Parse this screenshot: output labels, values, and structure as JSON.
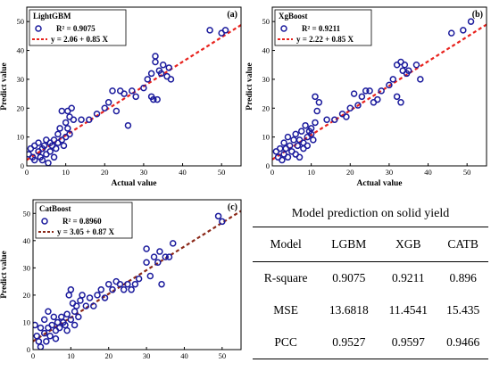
{
  "chart_data": [
    {
      "type": "scatter",
      "panel_label": "(a)",
      "legend_title": "LightGBM",
      "r2_text": "R² = 0.9075",
      "fit_text": "y = 2.06 + 0.85 X",
      "fit": {
        "intercept": 2.06,
        "slope": 0.85
      },
      "xlabel": "Actual value",
      "ylabel": "Predict value",
      "xlim": [
        0,
        55
      ],
      "ylim": [
        0,
        55
      ],
      "xticks": [
        0,
        10,
        20,
        30,
        40,
        50
      ],
      "yticks": [
        0,
        10,
        20,
        30,
        40,
        50
      ],
      "legend_position": "top-left",
      "marker_color": "#1a1a9c",
      "fit_color": "#e8221d",
      "points": [
        [
          0.5,
          4
        ],
        [
          1,
          6
        ],
        [
          1.5,
          3
        ],
        [
          2,
          7
        ],
        [
          2,
          2
        ],
        [
          3,
          5
        ],
        [
          3,
          8
        ],
        [
          3.5,
          3
        ],
        [
          4,
          6
        ],
        [
          4,
          2
        ],
        [
          4.5,
          7
        ],
        [
          5,
          4
        ],
        [
          5,
          9
        ],
        [
          5.5,
          1
        ],
        [
          6,
          5
        ],
        [
          6,
          8
        ],
        [
          6.5,
          7
        ],
        [
          7,
          9
        ],
        [
          7,
          3
        ],
        [
          7.5,
          6
        ],
        [
          8,
          11
        ],
        [
          8,
          8
        ],
        [
          8.5,
          13
        ],
        [
          9,
          9
        ],
        [
          9,
          19
        ],
        [
          9.5,
          7
        ],
        [
          10,
          10
        ],
        [
          10,
          15
        ],
        [
          10.5,
          13
        ],
        [
          10.5,
          19
        ],
        [
          11,
          11
        ],
        [
          11,
          17
        ],
        [
          11.5,
          20
        ],
        [
          12,
          16
        ],
        [
          14,
          16
        ],
        [
          16,
          16
        ],
        [
          18,
          18
        ],
        [
          20,
          20
        ],
        [
          21,
          22
        ],
        [
          22,
          26
        ],
        [
          23,
          19
        ],
        [
          24,
          26
        ],
        [
          25,
          25
        ],
        [
          26,
          14
        ],
        [
          27,
          26
        ],
        [
          28,
          24
        ],
        [
          30,
          27
        ],
        [
          31,
          30
        ],
        [
          32,
          32
        ],
        [
          32,
          24
        ],
        [
          32.5,
          23
        ],
        [
          33,
          36
        ],
        [
          33,
          38
        ],
        [
          33.5,
          23
        ],
        [
          34,
          33
        ],
        [
          34.5,
          32
        ],
        [
          35,
          35
        ],
        [
          36,
          31
        ],
        [
          36.5,
          34
        ],
        [
          37,
          30
        ],
        [
          47,
          47
        ],
        [
          50,
          46
        ],
        [
          51,
          47
        ]
      ]
    },
    {
      "type": "scatter",
      "panel_label": "(b)",
      "legend_title": "XgBoost",
      "r2_text": "R² = 0.9211",
      "fit_text": "y = 2.22 + 0.85 X",
      "fit": {
        "intercept": 2.22,
        "slope": 0.85
      },
      "xlabel": "Actual value",
      "ylabel": "Predict value",
      "xlim": [
        0,
        55
      ],
      "ylim": [
        0,
        55
      ],
      "xticks": [
        0,
        10,
        20,
        30,
        40,
        50
      ],
      "yticks": [
        0,
        10,
        20,
        30,
        40,
        50
      ],
      "legend_position": "top-left",
      "marker_color": "#1a1a9c",
      "fit_color": "#e8221d",
      "points": [
        [
          1,
          5
        ],
        [
          1.5,
          3
        ],
        [
          2,
          6
        ],
        [
          2.5,
          2
        ],
        [
          3,
          8
        ],
        [
          3,
          4
        ],
        [
          3.5,
          6
        ],
        [
          4,
          3
        ],
        [
          4,
          10
        ],
        [
          4.5,
          7
        ],
        [
          5,
          5
        ],
        [
          5.5,
          9
        ],
        [
          6,
          4
        ],
        [
          6,
          11
        ],
        [
          6.5,
          7
        ],
        [
          7,
          9
        ],
        [
          7,
          3
        ],
        [
          7.5,
          12
        ],
        [
          8,
          8
        ],
        [
          8,
          6
        ],
        [
          8.5,
          14
        ],
        [
          9,
          10
        ],
        [
          9,
          7
        ],
        [
          9.5,
          12
        ],
        [
          10,
          11
        ],
        [
          10,
          13
        ],
        [
          10.5,
          9
        ],
        [
          11,
          15
        ],
        [
          11,
          24
        ],
        [
          11.5,
          19
        ],
        [
          12,
          22
        ],
        [
          14,
          16
        ],
        [
          16,
          16
        ],
        [
          18,
          18
        ],
        [
          19,
          17
        ],
        [
          20,
          20
        ],
        [
          21,
          25
        ],
        [
          22,
          21
        ],
        [
          23,
          24
        ],
        [
          24,
          26
        ],
        [
          25,
          26
        ],
        [
          26,
          22
        ],
        [
          27,
          23
        ],
        [
          28,
          26
        ],
        [
          30,
          28
        ],
        [
          31,
          30
        ],
        [
          32,
          35
        ],
        [
          32,
          24
        ],
        [
          33,
          36
        ],
        [
          33,
          22
        ],
        [
          33.5,
          33
        ],
        [
          34,
          35
        ],
        [
          34.5,
          32
        ],
        [
          35,
          33
        ],
        [
          37,
          35
        ],
        [
          38,
          30
        ],
        [
          46,
          46
        ],
        [
          49,
          47
        ],
        [
          51,
          50
        ]
      ]
    },
    {
      "type": "scatter",
      "panel_label": "(c)",
      "legend_title": "CatBoost",
      "r2_text": "R² = 0.8960",
      "fit_text": "y = 3.05 + 0.87 X",
      "fit": {
        "intercept": 3.05,
        "slope": 0.87
      },
      "xlabel": "",
      "ylabel": "Predict value",
      "xlim": [
        0,
        55
      ],
      "ylim": [
        0,
        55
      ],
      "xticks": [
        0,
        10,
        20,
        30,
        40,
        50
      ],
      "yticks": [
        0,
        10,
        20,
        30,
        40,
        50
      ],
      "legend_position": "top-left",
      "marker_color": "#1a1a9c",
      "fit_color": "#8b2818",
      "points": [
        [
          0.5,
          9
        ],
        [
          1,
          5
        ],
        [
          1.5,
          3
        ],
        [
          2,
          8
        ],
        [
          2,
          1
        ],
        [
          3,
          6
        ],
        [
          3,
          11
        ],
        [
          3.5,
          3
        ],
        [
          4,
          8
        ],
        [
          4,
          14
        ],
        [
          4.5,
          5
        ],
        [
          5,
          9
        ],
        [
          5.5,
          12
        ],
        [
          6,
          7
        ],
        [
          6,
          4
        ],
        [
          6.5,
          10
        ],
        [
          7,
          8
        ],
        [
          7.5,
          12
        ],
        [
          8,
          10
        ],
        [
          8.5,
          9
        ],
        [
          9,
          13
        ],
        [
          9,
          7
        ],
        [
          9.5,
          20
        ],
        [
          10,
          11
        ],
        [
          10,
          22
        ],
        [
          10.5,
          17
        ],
        [
          11,
          9
        ],
        [
          11,
          14
        ],
        [
          11.5,
          16
        ],
        [
          12,
          12
        ],
        [
          12.5,
          18
        ],
        [
          13,
          20
        ],
        [
          14,
          16
        ],
        [
          15,
          19
        ],
        [
          16,
          16
        ],
        [
          17,
          20
        ],
        [
          18,
          22
        ],
        [
          19,
          19
        ],
        [
          20,
          24
        ],
        [
          21,
          22
        ],
        [
          22,
          25
        ],
        [
          23,
          24
        ],
        [
          24,
          22
        ],
        [
          25,
          24
        ],
        [
          26,
          22
        ],
        [
          27,
          24
        ],
        [
          28,
          26
        ],
        [
          30,
          32
        ],
        [
          30,
          37
        ],
        [
          31,
          27
        ],
        [
          32,
          34
        ],
        [
          33,
          32
        ],
        [
          33.5,
          36
        ],
        [
          34,
          24
        ],
        [
          35,
          34
        ],
        [
          36,
          34
        ],
        [
          37,
          39
        ],
        [
          49,
          49
        ],
        [
          50,
          47
        ]
      ]
    }
  ],
  "table": {
    "title": "Model prediction on solid yield",
    "headers": [
      "Model",
      "LGBM",
      "XGB",
      "CATB"
    ],
    "rows": [
      [
        "R-square",
        "0.9075",
        "0.9211",
        "0.896"
      ],
      [
        "MSE",
        "13.6818",
        "11.4541",
        "15.435"
      ],
      [
        "PCC",
        "0.9527",
        "0.9597",
        "0.9466"
      ]
    ]
  }
}
